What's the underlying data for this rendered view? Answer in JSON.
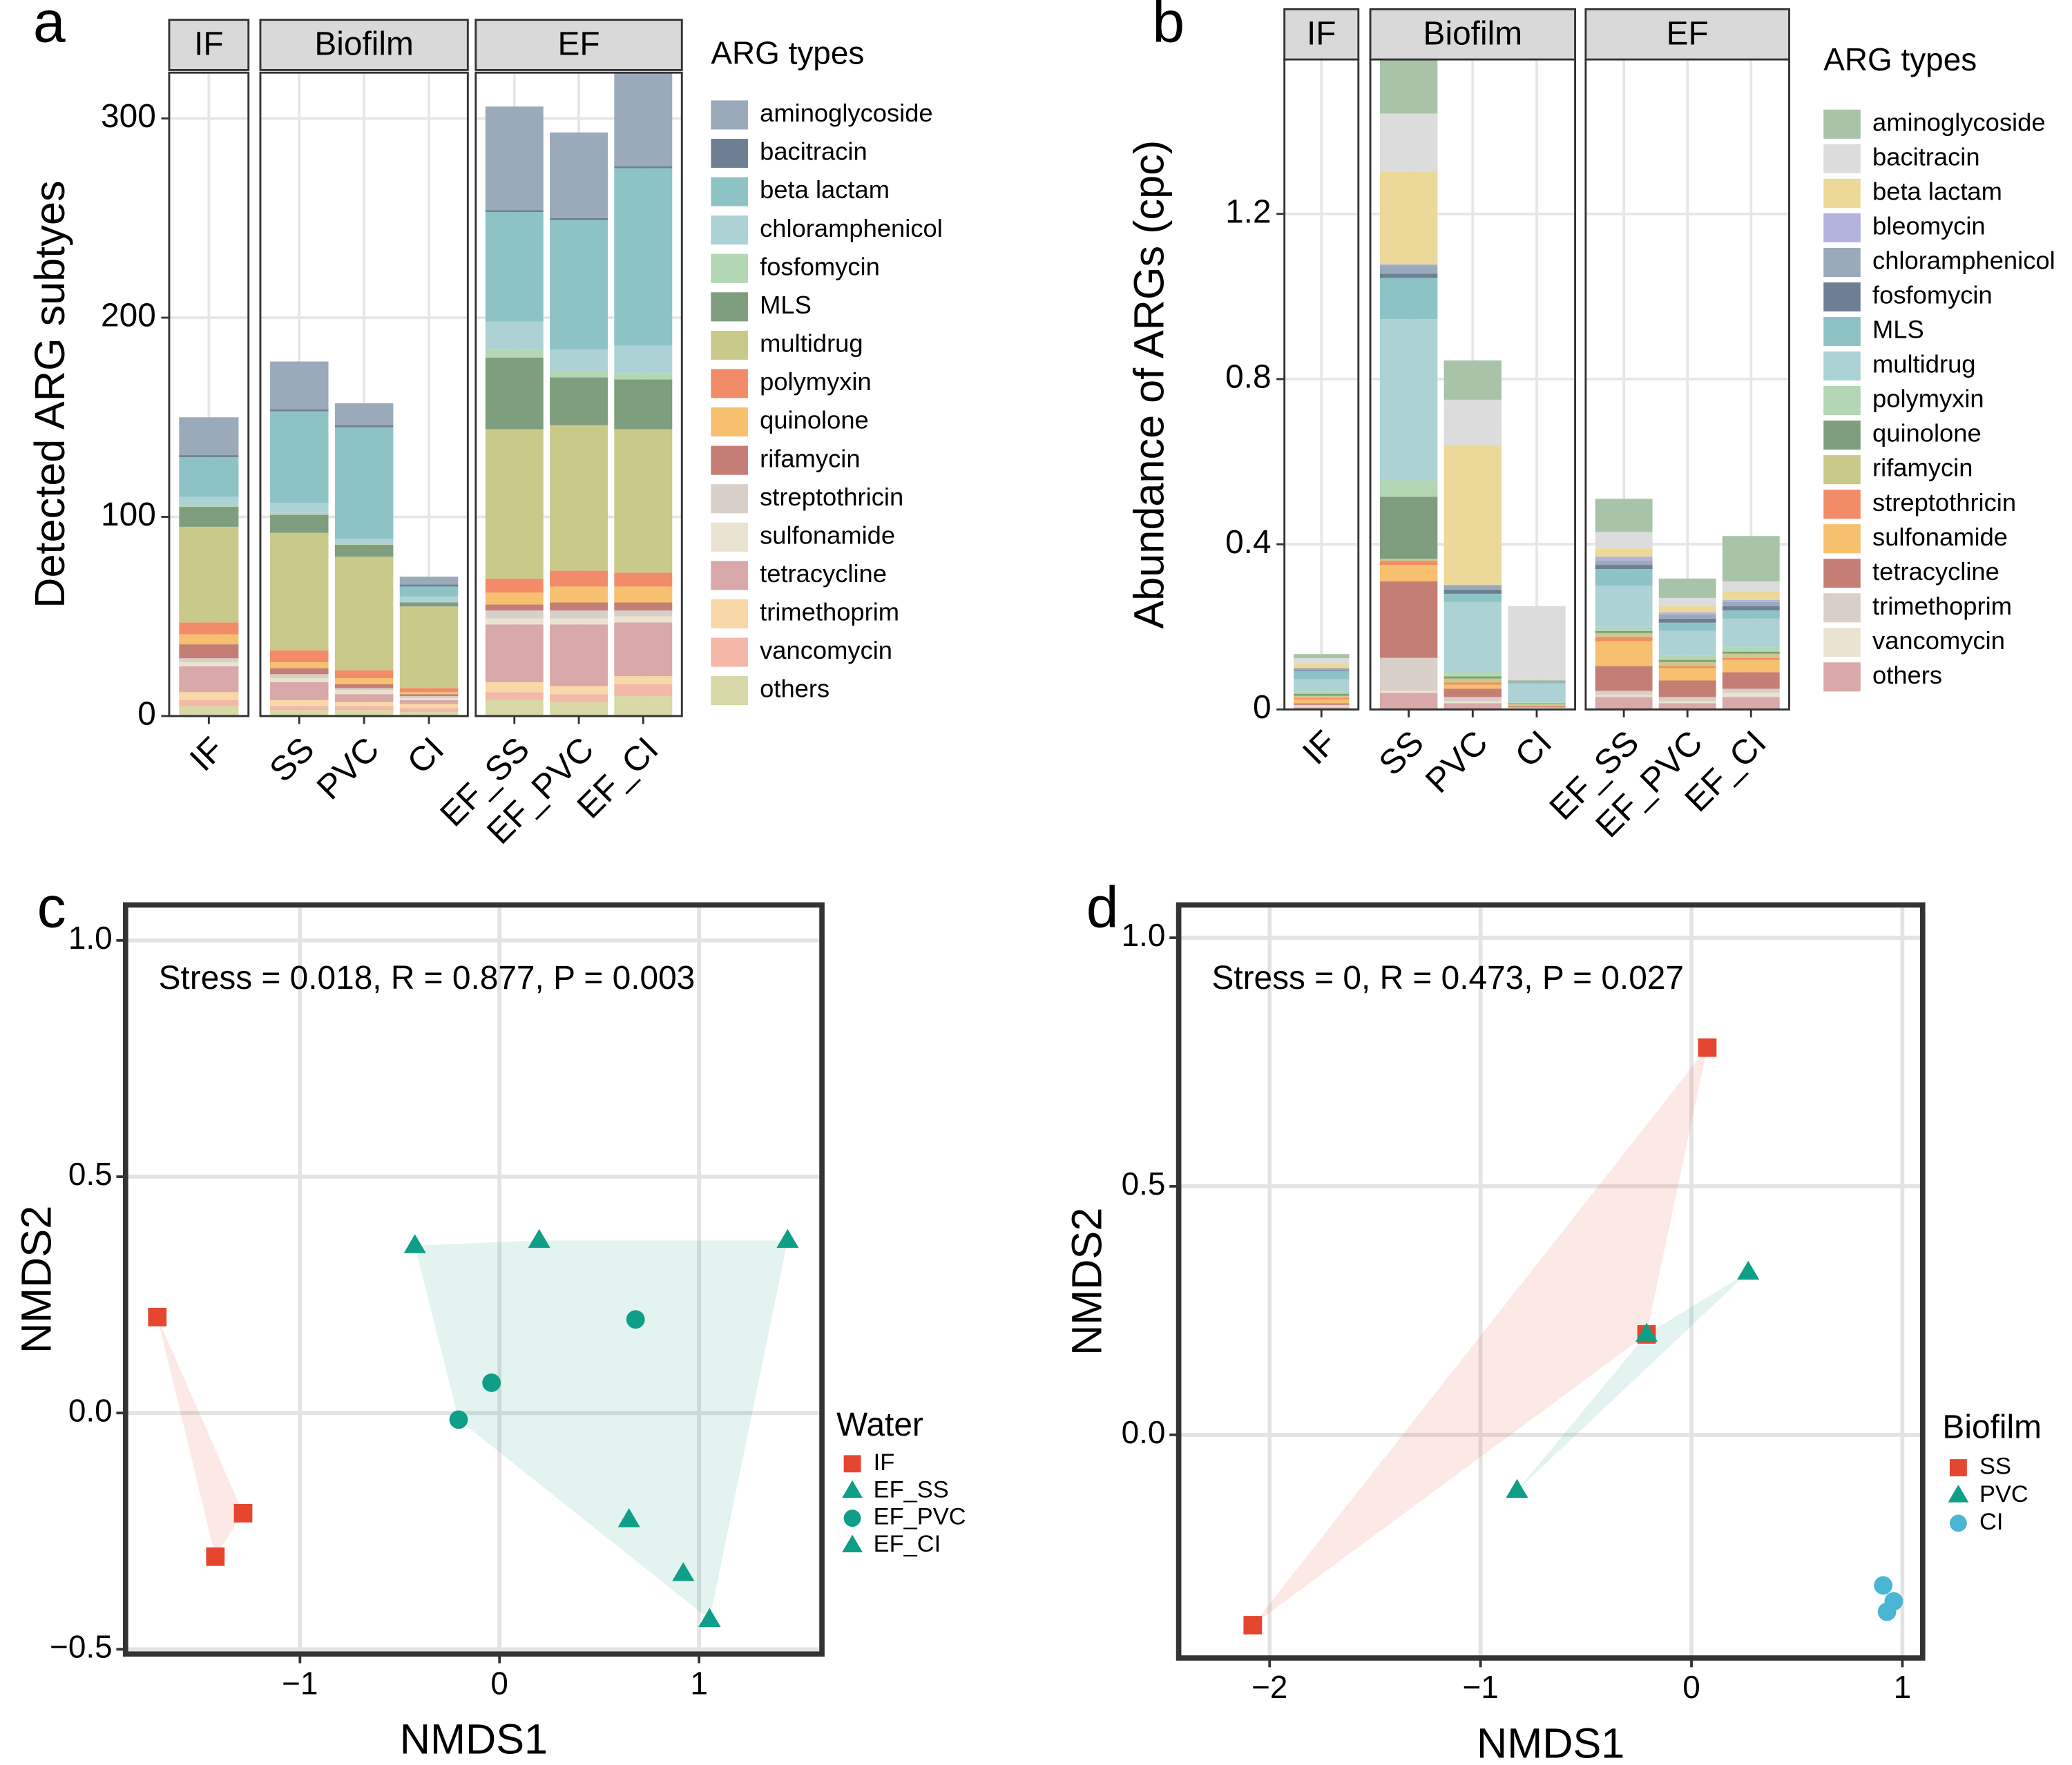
{
  "chart_data": [
    {
      "type": "bar",
      "stacked": true,
      "panel": "a",
      "ylabel": "Detected ARG subtyes",
      "legend_title": "ARG types",
      "facets": [
        {
          "name": "IF",
          "categories": [
            "IF"
          ]
        },
        {
          "name": "Biofilm",
          "categories": [
            "SS",
            "PVC",
            "CI"
          ]
        },
        {
          "name": "EF",
          "categories": [
            "EF_SS",
            "EF_PVC",
            "EF_CI"
          ]
        }
      ],
      "ylim": [
        0,
        323
      ],
      "yticks": [
        0,
        100,
        200,
        300
      ],
      "grid": true,
      "series": [
        {
          "name": "aminoglycoside",
          "color": "#9aaabb",
          "values": [
            19,
            24,
            11,
            4,
            52,
            43,
            50
          ]
        },
        {
          "name": "bacitracin",
          "color": "#6d8093",
          "values": [
            1,
            1,
            1,
            1,
            1,
            1,
            1
          ]
        },
        {
          "name": "beta lactam",
          "color": "#8ec3c6",
          "values": [
            20,
            46,
            56,
            5,
            55,
            65,
            89
          ]
        },
        {
          "name": "chloramphenicol",
          "color": "#add2d6",
          "values": [
            4,
            5,
            2,
            3,
            14,
            11,
            14
          ]
        },
        {
          "name": "fosfomycin",
          "color": "#b3d6b3",
          "values": [
            1,
            1,
            1,
            0,
            4,
            3,
            3
          ]
        },
        {
          "name": "MLS",
          "color": "#7e9e7e",
          "values": [
            10,
            9,
            6,
            2,
            36,
            24,
            25
          ]
        },
        {
          "name": "multidrug",
          "color": "#c9c98a",
          "values": [
            48,
            59,
            57,
            41,
            75,
            73,
            72
          ]
        },
        {
          "name": "polymyxin",
          "color": "#f28c68",
          "values": [
            6,
            6,
            4,
            2,
            7,
            8,
            7
          ]
        },
        {
          "name": "quinolone",
          "color": "#f7c06e",
          "values": [
            5,
            3,
            3,
            1,
            6,
            8,
            8
          ]
        },
        {
          "name": "rifamycin",
          "color": "#c57e75",
          "values": [
            7,
            3,
            2,
            1,
            3,
            4,
            4
          ]
        },
        {
          "name": "streptothricin",
          "color": "#d8d0c8",
          "values": [
            2,
            2,
            1,
            1,
            4,
            4,
            3
          ]
        },
        {
          "name": "sulfonamide",
          "color": "#e9e3cf",
          "values": [
            2,
            2,
            2,
            1,
            3,
            3,
            3
          ]
        },
        {
          "name": "tetracycline",
          "color": "#d9a8a8",
          "values": [
            13,
            9,
            4,
            2,
            29,
            31,
            27
          ]
        },
        {
          "name": "trimethoprim",
          "color": "#f9d8a8",
          "values": [
            4,
            3,
            2,
            2,
            5,
            4,
            4
          ]
        },
        {
          "name": "vancomycin",
          "color": "#f4b8a8",
          "values": [
            3,
            2,
            2,
            2,
            4,
            4,
            6
          ]
        },
        {
          "name": "others",
          "color": "#d8d8a8",
          "values": [
            5,
            3,
            3,
            2,
            8,
            7,
            10
          ]
        }
      ]
    },
    {
      "type": "bar",
      "stacked": true,
      "panel": "b",
      "ylabel": "Abundance of ARGs (cpc)",
      "legend_title": "ARG types",
      "facets": [
        {
          "name": "IF",
          "categories": [
            "IF"
          ]
        },
        {
          "name": "Biofilm",
          "categories": [
            "SS",
            "PVC",
            "CI"
          ]
        },
        {
          "name": "EF",
          "categories": [
            "EF_SS",
            "EF_PVC",
            "EF_CI"
          ]
        }
      ],
      "ylim": [
        0,
        1.574
      ],
      "yticks": [
        0,
        0.4,
        0.8,
        1.2
      ],
      "grid": true,
      "series": [
        {
          "name": "aminoglycoside",
          "color": "#a8c4a8",
          "values": [
            0.01,
            0.13,
            0.095,
            0,
            0.08,
            0.047,
            0.11
          ]
        },
        {
          "name": "bacitracin",
          "color": "#dcdcdc",
          "values": [
            0.014,
            0.14,
            0.11,
            0.178,
            0.04,
            0.02,
            0.025
          ]
        },
        {
          "name": "beta lactam",
          "color": "#ecd898",
          "values": [
            0.01,
            0.225,
            0.338,
            0.002,
            0.02,
            0.015,
            0.02
          ]
        },
        {
          "name": "bleomycin",
          "color": "#b3b3dd",
          "values": [
            0,
            0.003,
            0.002,
            0,
            0.01,
            0.005,
            0.005
          ]
        },
        {
          "name": "chloramphenicol",
          "color": "#9aaabb",
          "values": [
            0.005,
            0.02,
            0.01,
            0.002,
            0.01,
            0.01,
            0.01
          ]
        },
        {
          "name": "fosfomycin",
          "color": "#6d8093",
          "values": [
            0.002,
            0.01,
            0.01,
            0.001,
            0.01,
            0.01,
            0.01
          ]
        },
        {
          "name": "MLS",
          "color": "#8ec3c6",
          "values": [
            0.02,
            0.1,
            0.02,
            0.005,
            0.04,
            0.02,
            0.02
          ]
        },
        {
          "name": "multidrug",
          "color": "#add2d6",
          "values": [
            0.03,
            0.39,
            0.17,
            0.045,
            0.1,
            0.06,
            0.07
          ]
        },
        {
          "name": "polymyxin",
          "color": "#b3d6b3",
          "values": [
            0.005,
            0.04,
            0.01,
            0.002,
            0.01,
            0.01,
            0.01
          ]
        },
        {
          "name": "quinolone",
          "color": "#7e9e7e",
          "values": [
            0.005,
            0.15,
            0.005,
            0.002,
            0.005,
            0.005,
            0.005
          ]
        },
        {
          "name": "rifamycin",
          "color": "#c9c98a",
          "values": [
            0.005,
            0.005,
            0.01,
            0.003,
            0.01,
            0.01,
            0.01
          ]
        },
        {
          "name": "streptothricin",
          "color": "#f28c68",
          "values": [
            0.003,
            0.01,
            0.005,
            0,
            0.01,
            0.005,
            0.005
          ]
        },
        {
          "name": "sulfonamide",
          "color": "#f7c06e",
          "values": [
            0.01,
            0.04,
            0.01,
            0.002,
            0.06,
            0.03,
            0.03
          ]
        },
        {
          "name": "tetracycline",
          "color": "#c57e75",
          "values": [
            0.004,
            0.185,
            0.02,
            0.003,
            0.06,
            0.04,
            0.04
          ]
        },
        {
          "name": "trimethoprim",
          "color": "#d8d0c8",
          "values": [
            0.003,
            0.08,
            0.01,
            0.001,
            0.01,
            0.01,
            0.01
          ]
        },
        {
          "name": "vancomycin",
          "color": "#e9e3cf",
          "values": [
            0.003,
            0.005,
            0.005,
            0.002,
            0.005,
            0.005,
            0.01
          ]
        },
        {
          "name": "others",
          "color": "#d9a8a8",
          "values": [
            0.005,
            0.04,
            0.015,
            0.002,
            0.03,
            0.015,
            0.03
          ]
        }
      ]
    },
    {
      "type": "scatter",
      "panel": "c",
      "xlabel": "NMDS1",
      "ylabel": "NMDS2",
      "annotation": "Stress = 0.018, R = 0.877, P = 0.003",
      "legend_title": "Water",
      "xlim": [
        -1.874,
        1.616
      ],
      "ylim": [
        -0.51,
        1.075
      ],
      "grid": true,
      "xticks": [
        {
          "value": -1,
          "label": "−1"
        },
        0,
        1
      ],
      "yticks": [
        {
          "value": -0.5,
          "label": "−0.5"
        },
        {
          "value": 0,
          "label": "0.0"
        },
        0.5,
        {
          "value": 1,
          "label": "1.0"
        }
      ],
      "series": [
        {
          "name": "IF",
          "color": "#e5462f",
          "marker": "square",
          "x": [
            -1.715,
            -1.285,
            -1.424
          ],
          "y": [
            0.203,
            -0.212,
            -0.304
          ]
        },
        {
          "name": "EF_SS",
          "color": "#0f9e87",
          "marker": "triangle",
          "x": [
            -0.424,
            0.199,
            1.444
          ],
          "y": [
            0.354,
            0.365,
            0.365
          ]
        },
        {
          "name": "EF_PVC",
          "color": "#0f9e87",
          "marker": "circle",
          "x": [
            0.682,
            -0.04,
            -0.205
          ],
          "y": [
            0.198,
            0.064,
            -0.014
          ]
        },
        {
          "name": "EF_CI",
          "color": "#0f9e87",
          "marker": "triangle",
          "x": [
            0.649,
            0.921,
            1.053
          ],
          "y": [
            -0.226,
            -0.34,
            -0.437
          ]
        }
      ]
    },
    {
      "type": "scatter",
      "panel": "d",
      "xlabel": "NMDS1",
      "ylabel": "NMDS2",
      "annotation": "Stress = 0, R = 0.473, P = 0.027",
      "legend_title": "Biofilm",
      "xlim": [
        -2.431,
        1.096
      ],
      "ylim": [
        -0.449,
        1.066
      ],
      "grid": true,
      "xticks": [
        {
          "value": -2,
          "label": "−2"
        },
        {
          "value": -1,
          "label": "−1"
        },
        0,
        1
      ],
      "yticks": [
        {
          "value": 0,
          "label": "0.0"
        },
        0.5,
        {
          "value": 1,
          "label": "1.0"
        }
      ],
      "series": [
        {
          "name": "SS",
          "color": "#e5462f",
          "marker": "square",
          "x": [
            0.075,
            -0.213,
            -2.08
          ],
          "y": [
            0.779,
            0.202,
            -0.383
          ]
        },
        {
          "name": "PVC",
          "color": "#0f9e87",
          "marker": "triangle",
          "x": [
            0.269,
            -0.213,
            -0.827
          ],
          "y": [
            0.327,
            0.202,
            -0.112
          ]
        },
        {
          "name": "CI",
          "color": "#4bb6d4",
          "marker": "circle",
          "x": [
            0.909,
            0.959,
            0.927
          ],
          "y": [
            -0.303,
            -0.335,
            -0.356
          ]
        }
      ]
    }
  ]
}
